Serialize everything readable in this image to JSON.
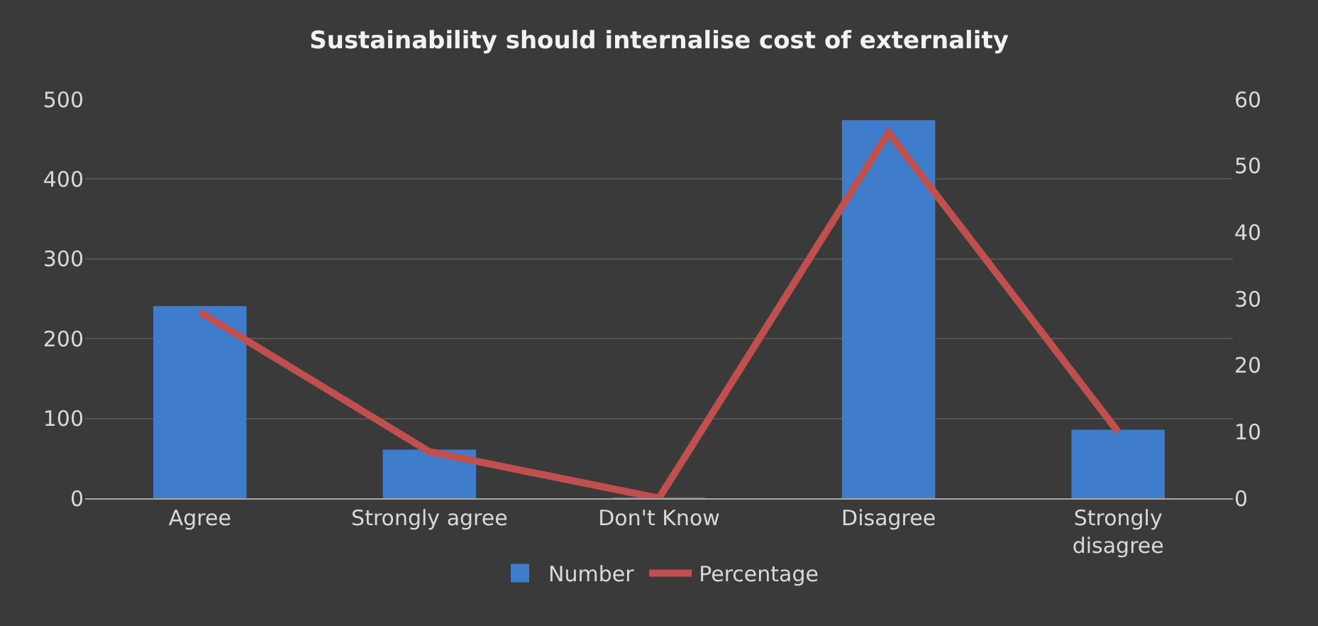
{
  "chart_data": {
    "type": "bar",
    "title": "Sustainability should internalise cost of externality",
    "categories": [
      "Agree",
      "Strongly agree",
      "Don't Know",
      "Disagree",
      "Strongly\ndisagree"
    ],
    "series": [
      {
        "name": "Number",
        "color": "#3f7dcc",
        "values": [
          240,
          60,
          0,
          473,
          85
        ]
      },
      {
        "name": "Percentage",
        "type": "line",
        "axis": "y2",
        "color": "#c0504d",
        "values": [
          28,
          7,
          0,
          55,
          10
        ]
      }
    ],
    "ylim": [
      0,
      500
    ],
    "yticks": [
      0,
      100,
      200,
      300,
      400,
      500
    ],
    "y2lim": [
      0,
      60
    ],
    "y2ticks": [
      0,
      10,
      20,
      30,
      40,
      50,
      60
    ],
    "grid": "y",
    "legend": "bottom",
    "marker": "none",
    "line_style": "solid"
  }
}
